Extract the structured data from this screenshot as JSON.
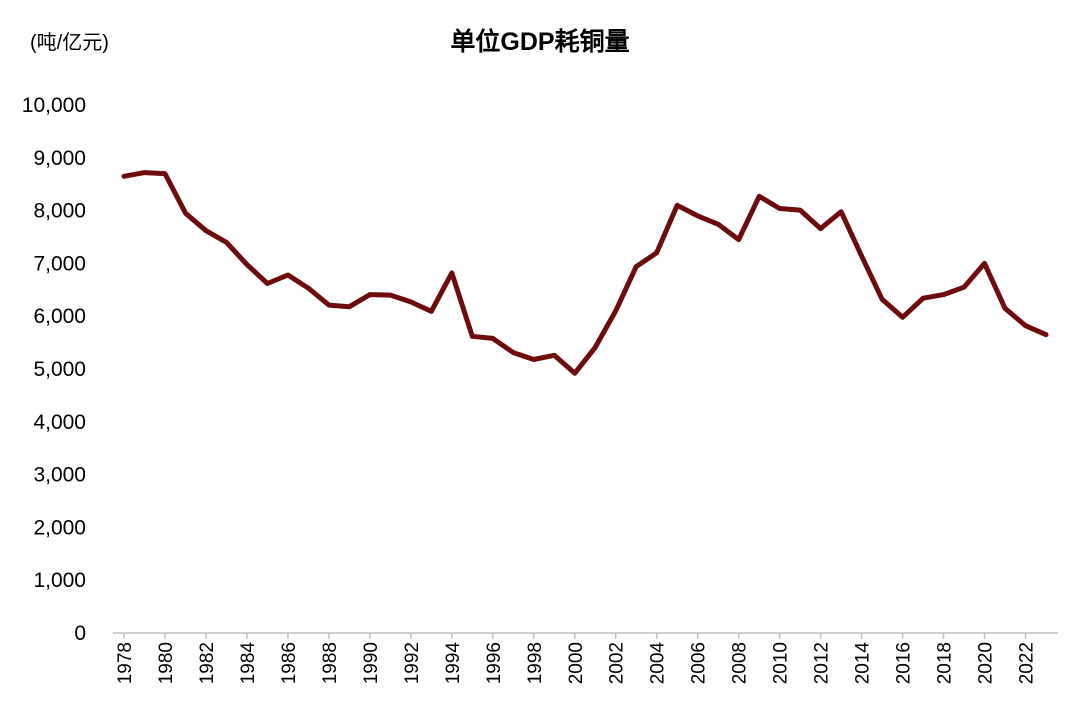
{
  "chart_data": {
    "type": "line",
    "title": "单位GDP耗铜量",
    "ylabel": "(吨/亿元)",
    "xlabel": "",
    "ylim": [
      0,
      10000
    ],
    "yticks": [
      0,
      1000,
      2000,
      3000,
      4000,
      5000,
      6000,
      7000,
      8000,
      9000,
      10000
    ],
    "ytick_labels": [
      "0",
      "1,000",
      "2,000",
      "3,000",
      "4,000",
      "5,000",
      "6,000",
      "7,000",
      "8,000",
      "9,000",
      "10,000"
    ],
    "xtick_labels": [
      "1978",
      "1980",
      "1982",
      "1984",
      "1986",
      "1988",
      "1990",
      "1992",
      "1994",
      "1996",
      "1998",
      "2000",
      "2002",
      "2004",
      "2006",
      "2008",
      "2010",
      "2012",
      "2014",
      "2016",
      "2018",
      "2020",
      "2022"
    ],
    "grid": false,
    "line_color": "#6e0b0b",
    "series": [
      {
        "name": "单位GDP耗铜量",
        "x": [
          1978,
          1979,
          1980,
          1981,
          1982,
          1983,
          1984,
          1985,
          1986,
          1987,
          1988,
          1989,
          1990,
          1991,
          1992,
          1993,
          1994,
          1995,
          1996,
          1997,
          1998,
          1999,
          2000,
          2001,
          2002,
          2003,
          2004,
          2005,
          2006,
          2007,
          2008,
          2009,
          2010,
          2011,
          2012,
          2013,
          2014,
          2015,
          2016,
          2017,
          2018,
          2019,
          2020,
          2021,
          2022,
          2023
        ],
        "values": [
          8650,
          8720,
          8700,
          7950,
          7620,
          7400,
          6980,
          6620,
          6780,
          6530,
          6210,
          6180,
          6410,
          6400,
          6270,
          6090,
          6820,
          5620,
          5580,
          5310,
          5180,
          5260,
          4920,
          5410,
          6100,
          6940,
          7200,
          8100,
          7900,
          7740,
          7450,
          8270,
          8040,
          8010,
          7660,
          7980,
          7140,
          6320,
          5980,
          6340,
          6410,
          6550,
          7000,
          6150,
          5820,
          5650
        ]
      }
    ]
  }
}
